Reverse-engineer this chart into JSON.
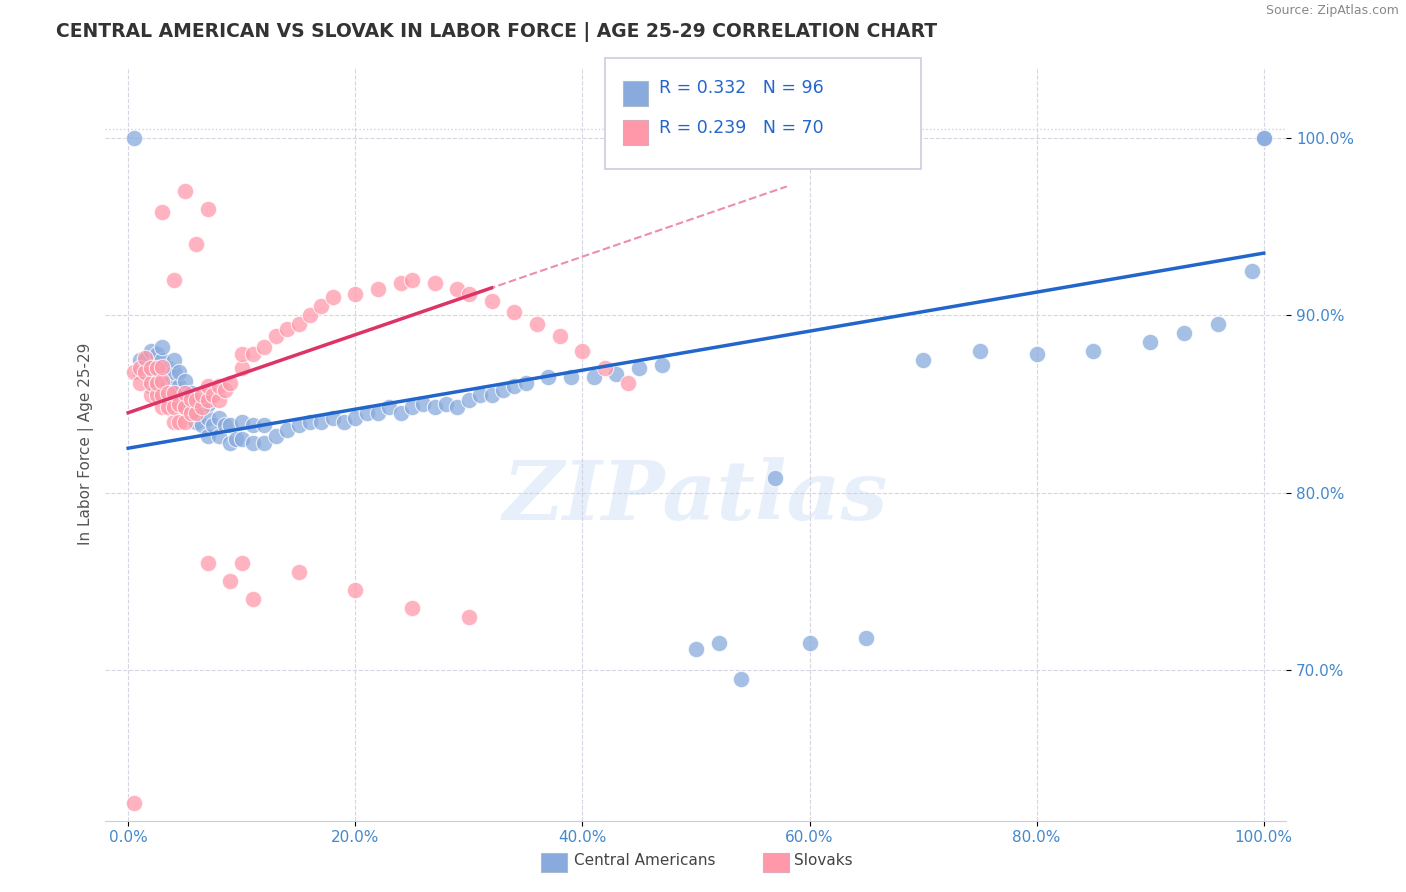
{
  "title": "CENTRAL AMERICAN VS SLOVAK IN LABOR FORCE | AGE 25-29 CORRELATION CHART",
  "source": "Source: ZipAtlas.com",
  "ylabel": "In Labor Force | Age 25-29",
  "watermark": "ZIPatlas",
  "legend_blue_r": "R = 0.332",
  "legend_blue_n": "N = 96",
  "legend_pink_r": "R = 0.239",
  "legend_pink_n": "N = 70",
  "blue_color": "#88AADD",
  "pink_color": "#FF99AA",
  "blue_line_color": "#2266CC",
  "pink_line_color": "#DD3366",
  "background_color": "#FFFFFF",
  "grid_color": "#CCCCDD",
  "tick_color": "#4488CC",
  "blue_x": [
    0.005,
    0.01,
    0.01,
    0.015,
    0.015,
    0.02,
    0.02,
    0.02,
    0.025,
    0.025,
    0.025,
    0.03,
    0.03,
    0.03,
    0.03,
    0.03,
    0.035,
    0.035,
    0.035,
    0.04,
    0.04,
    0.04,
    0.04,
    0.045,
    0.045,
    0.045,
    0.05,
    0.05,
    0.05,
    0.055,
    0.055,
    0.06,
    0.06,
    0.065,
    0.065,
    0.07,
    0.07,
    0.07,
    0.075,
    0.08,
    0.08,
    0.085,
    0.09,
    0.09,
    0.095,
    0.1,
    0.1,
    0.11,
    0.11,
    0.12,
    0.12,
    0.13,
    0.14,
    0.15,
    0.16,
    0.17,
    0.18,
    0.19,
    0.2,
    0.21,
    0.22,
    0.23,
    0.24,
    0.25,
    0.26,
    0.27,
    0.28,
    0.29,
    0.3,
    0.31,
    0.32,
    0.33,
    0.34,
    0.35,
    0.37,
    0.39,
    0.41,
    0.43,
    0.45,
    0.47,
    0.5,
    0.52,
    0.54,
    0.57,
    0.6,
    0.65,
    0.7,
    0.75,
    0.8,
    0.85,
    0.9,
    0.93,
    0.96,
    0.99,
    1.0,
    1.0
  ],
  "blue_y": [
    1.0,
    0.868,
    0.875,
    0.868,
    0.875,
    0.86,
    0.87,
    0.88,
    0.86,
    0.87,
    0.878,
    0.855,
    0.862,
    0.87,
    0.875,
    0.882,
    0.855,
    0.862,
    0.87,
    0.852,
    0.86,
    0.868,
    0.875,
    0.852,
    0.86,
    0.868,
    0.848,
    0.855,
    0.863,
    0.848,
    0.856,
    0.84,
    0.85,
    0.838,
    0.848,
    0.832,
    0.842,
    0.85,
    0.838,
    0.832,
    0.842,
    0.838,
    0.828,
    0.838,
    0.83,
    0.83,
    0.84,
    0.828,
    0.838,
    0.828,
    0.838,
    0.832,
    0.835,
    0.838,
    0.84,
    0.84,
    0.842,
    0.84,
    0.842,
    0.845,
    0.845,
    0.848,
    0.845,
    0.848,
    0.85,
    0.848,
    0.85,
    0.848,
    0.852,
    0.855,
    0.855,
    0.858,
    0.86,
    0.862,
    0.865,
    0.865,
    0.865,
    0.867,
    0.87,
    0.872,
    0.712,
    0.715,
    0.695,
    0.808,
    0.715,
    0.718,
    0.875,
    0.88,
    0.878,
    0.88,
    0.885,
    0.89,
    0.895,
    0.925,
    1.0,
    1.0
  ],
  "pink_x": [
    0.005,
    0.01,
    0.01,
    0.015,
    0.015,
    0.02,
    0.02,
    0.02,
    0.025,
    0.025,
    0.025,
    0.03,
    0.03,
    0.03,
    0.03,
    0.035,
    0.035,
    0.04,
    0.04,
    0.04,
    0.045,
    0.045,
    0.05,
    0.05,
    0.05,
    0.055,
    0.055,
    0.06,
    0.06,
    0.065,
    0.065,
    0.07,
    0.07,
    0.075,
    0.08,
    0.08,
    0.085,
    0.09,
    0.1,
    0.1,
    0.11,
    0.12,
    0.13,
    0.14,
    0.15,
    0.16,
    0.17,
    0.18,
    0.2,
    0.22,
    0.24,
    0.25,
    0.27,
    0.29,
    0.3,
    0.32,
    0.34,
    0.36,
    0.38,
    0.4,
    0.42,
    0.44,
    0.1,
    0.15,
    0.2,
    0.25,
    0.3,
    0.07,
    0.09,
    0.11
  ],
  "pink_y": [
    0.868,
    0.862,
    0.87,
    0.868,
    0.876,
    0.855,
    0.862,
    0.87,
    0.855,
    0.862,
    0.87,
    0.848,
    0.855,
    0.863,
    0.871,
    0.848,
    0.856,
    0.84,
    0.848,
    0.856,
    0.84,
    0.85,
    0.84,
    0.848,
    0.856,
    0.845,
    0.853,
    0.845,
    0.852,
    0.848,
    0.855,
    0.852,
    0.86,
    0.855,
    0.852,
    0.86,
    0.858,
    0.862,
    0.87,
    0.878,
    0.878,
    0.882,
    0.888,
    0.892,
    0.895,
    0.9,
    0.905,
    0.91,
    0.912,
    0.915,
    0.918,
    0.92,
    0.918,
    0.915,
    0.912,
    0.908,
    0.902,
    0.895,
    0.888,
    0.88,
    0.87,
    0.862,
    0.76,
    0.755,
    0.745,
    0.735,
    0.73,
    0.76,
    0.75,
    0.74
  ],
  "pink_outliers_x": [
    0.005,
    0.03,
    0.04,
    0.05,
    0.06,
    0.07
  ],
  "pink_outliers_y": [
    0.625,
    0.958,
    0.92,
    0.97,
    0.94,
    0.96
  ],
  "xlim": [
    -0.02,
    1.02
  ],
  "ylim": [
    0.615,
    1.04
  ],
  "yticks": [
    0.7,
    0.8,
    0.9,
    1.0
  ],
  "xticks": [
    0.0,
    0.2,
    0.4,
    0.6,
    0.8,
    1.0
  ]
}
